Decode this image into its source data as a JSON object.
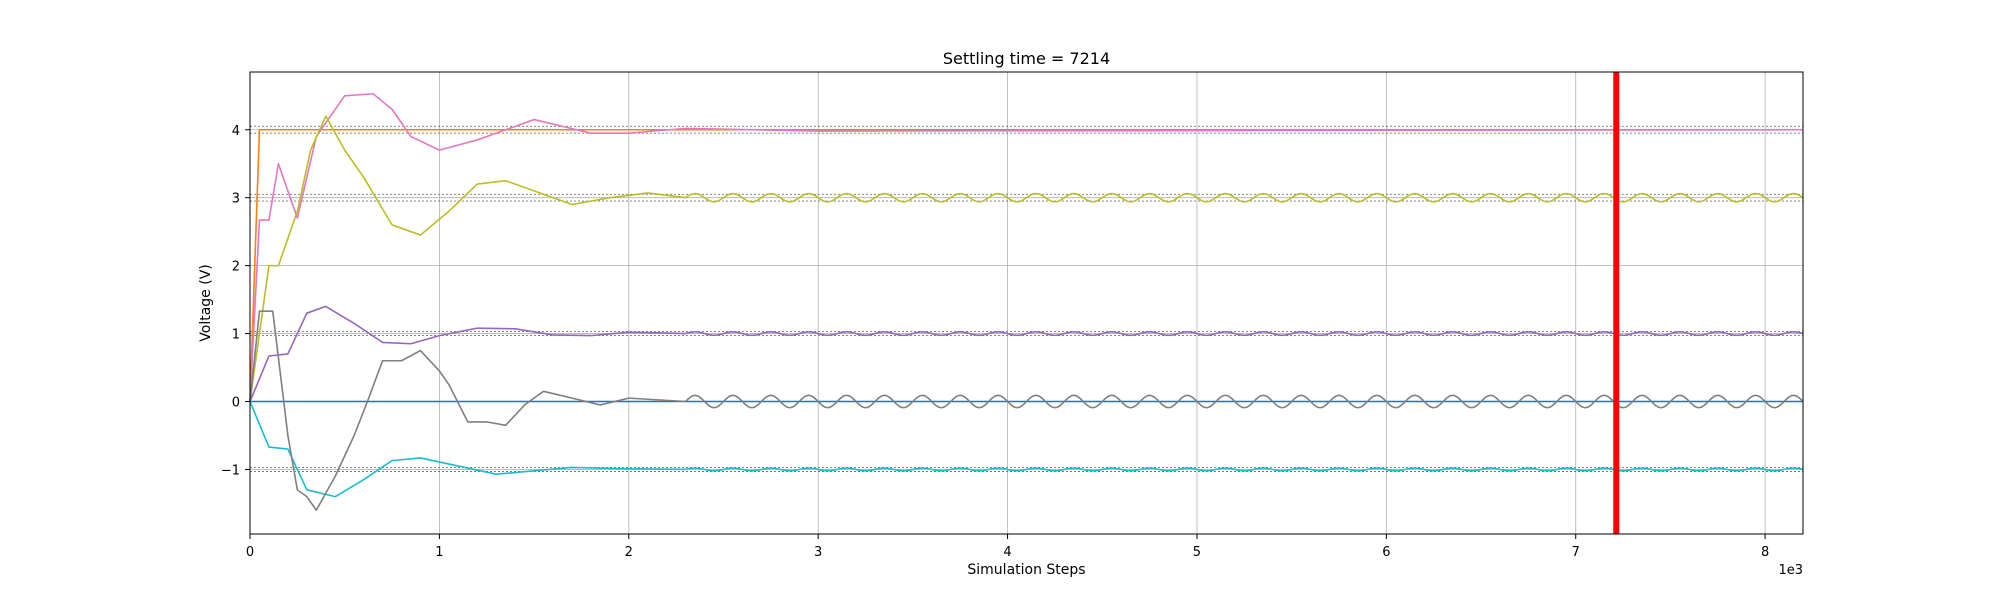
{
  "chart_data": {
    "type": "line",
    "title": "Settling time = 7214",
    "xlabel": "Simulation Steps",
    "ylabel": "Voltage (V)",
    "x_multiplier_label": "1e3",
    "xlim": [
      0,
      8.2
    ],
    "ylim": [
      -1.95,
      4.85
    ],
    "x_ticks": [
      0,
      1,
      2,
      3,
      4,
      5,
      6,
      7,
      8
    ],
    "y_ticks": [
      -1,
      0,
      1,
      2,
      3,
      4
    ],
    "grid": true,
    "settling_marker": {
      "x": 7.214,
      "color": "#ff0000"
    },
    "tolerance_bands": [
      {
        "center": 4,
        "half_width": 0.05
      },
      {
        "center": 3,
        "half_width": 0.05
      },
      {
        "center": 1,
        "half_width": 0.03
      },
      {
        "center": -1,
        "half_width": 0.03
      }
    ],
    "series": [
      {
        "color": "#ff7f0e",
        "points": [
          [
            0,
            0
          ],
          [
            0.05,
            4
          ],
          [
            8.2,
            4
          ]
        ]
      },
      {
        "color": "#1f77b4",
        "points": [
          [
            0,
            0
          ],
          [
            8.2,
            0
          ]
        ]
      },
      {
        "color": "#e377c2",
        "points": [
          [
            0,
            0
          ],
          [
            0.05,
            2.67
          ],
          [
            0.1,
            2.67
          ],
          [
            0.15,
            3.5
          ],
          [
            0.25,
            2.7
          ],
          [
            0.35,
            3.9
          ],
          [
            0.5,
            4.5
          ],
          [
            0.65,
            4.53
          ],
          [
            0.75,
            4.3
          ],
          [
            0.85,
            3.9
          ],
          [
            1.0,
            3.7
          ],
          [
            1.2,
            3.85
          ],
          [
            1.5,
            4.15
          ],
          [
            1.8,
            3.95
          ],
          [
            2.0,
            3.95
          ],
          [
            2.3,
            4.02
          ],
          [
            3,
            3.98
          ],
          [
            8.2,
            4.0
          ]
        ]
      },
      {
        "color": "#bcbd22",
        "points": [
          [
            0,
            0
          ],
          [
            0.1,
            2.0
          ],
          [
            0.15,
            2.0
          ],
          [
            0.25,
            2.8
          ],
          [
            0.32,
            3.7
          ],
          [
            0.4,
            4.2
          ],
          [
            0.5,
            3.7
          ],
          [
            0.6,
            3.3
          ],
          [
            0.75,
            2.6
          ],
          [
            0.9,
            2.45
          ],
          [
            1.05,
            2.8
          ],
          [
            1.2,
            3.2
          ],
          [
            1.35,
            3.25
          ],
          [
            1.55,
            3.05
          ],
          [
            1.7,
            2.9
          ],
          [
            1.9,
            3.0
          ],
          [
            2.1,
            3.07
          ],
          [
            2.3,
            3.0
          ]
        ]
      },
      {
        "color": "#9467bd",
        "points": [
          [
            0,
            0
          ],
          [
            0.1,
            0.67
          ],
          [
            0.2,
            0.7
          ],
          [
            0.3,
            1.3
          ],
          [
            0.4,
            1.4
          ],
          [
            0.55,
            1.15
          ],
          [
            0.7,
            0.87
          ],
          [
            0.85,
            0.85
          ],
          [
            1.0,
            0.97
          ],
          [
            1.2,
            1.08
          ],
          [
            1.4,
            1.07
          ],
          [
            1.6,
            0.98
          ],
          [
            1.8,
            0.97
          ],
          [
            2.0,
            1.02
          ],
          [
            2.3,
            1.0
          ]
        ]
      },
      {
        "color": "#17becf",
        "points": [
          [
            0,
            0
          ],
          [
            0.1,
            -0.67
          ],
          [
            0.2,
            -0.7
          ],
          [
            0.3,
            -1.3
          ],
          [
            0.45,
            -1.4
          ],
          [
            0.6,
            -1.15
          ],
          [
            0.75,
            -0.87
          ],
          [
            0.9,
            -0.83
          ],
          [
            1.1,
            -0.95
          ],
          [
            1.3,
            -1.07
          ],
          [
            1.5,
            -1.02
          ],
          [
            1.7,
            -0.97
          ],
          [
            2.0,
            -0.99
          ],
          [
            2.3,
            -1.0
          ]
        ]
      },
      {
        "color": "#7f7f7f",
        "points": [
          [
            0,
            0
          ],
          [
            0.05,
            1.33
          ],
          [
            0.12,
            1.33
          ],
          [
            0.2,
            -0.5
          ],
          [
            0.25,
            -1.3
          ],
          [
            0.3,
            -1.4
          ],
          [
            0.35,
            -1.6
          ],
          [
            0.45,
            -1.1
          ],
          [
            0.55,
            -0.5
          ],
          [
            0.62,
            0.0
          ],
          [
            0.7,
            0.6
          ],
          [
            0.8,
            0.6
          ],
          [
            0.9,
            0.75
          ],
          [
            1.0,
            0.45
          ],
          [
            1.05,
            0.25
          ],
          [
            1.15,
            -0.3
          ],
          [
            1.25,
            -0.3
          ],
          [
            1.35,
            -0.35
          ],
          [
            1.45,
            -0.05
          ],
          [
            1.55,
            0.15
          ],
          [
            1.7,
            0.05
          ],
          [
            1.85,
            -0.05
          ],
          [
            2.0,
            0.05
          ],
          [
            2.3,
            0.0
          ]
        ]
      }
    ],
    "steady_oscillations": [
      {
        "color": "#bcbd22",
        "from": 2.3,
        "center": 3.0,
        "amplitude": 0.06,
        "period": 0.2
      },
      {
        "color": "#9467bd",
        "from": 2.3,
        "center": 1.0,
        "amplitude": 0.025,
        "period": 0.2
      },
      {
        "color": "#17becf",
        "from": 2.3,
        "center": -1.0,
        "amplitude": 0.02,
        "period": 0.2
      },
      {
        "color": "#7f7f7f",
        "from": 2.3,
        "center": 0.0,
        "amplitude": 0.09,
        "period": 0.2
      }
    ]
  }
}
